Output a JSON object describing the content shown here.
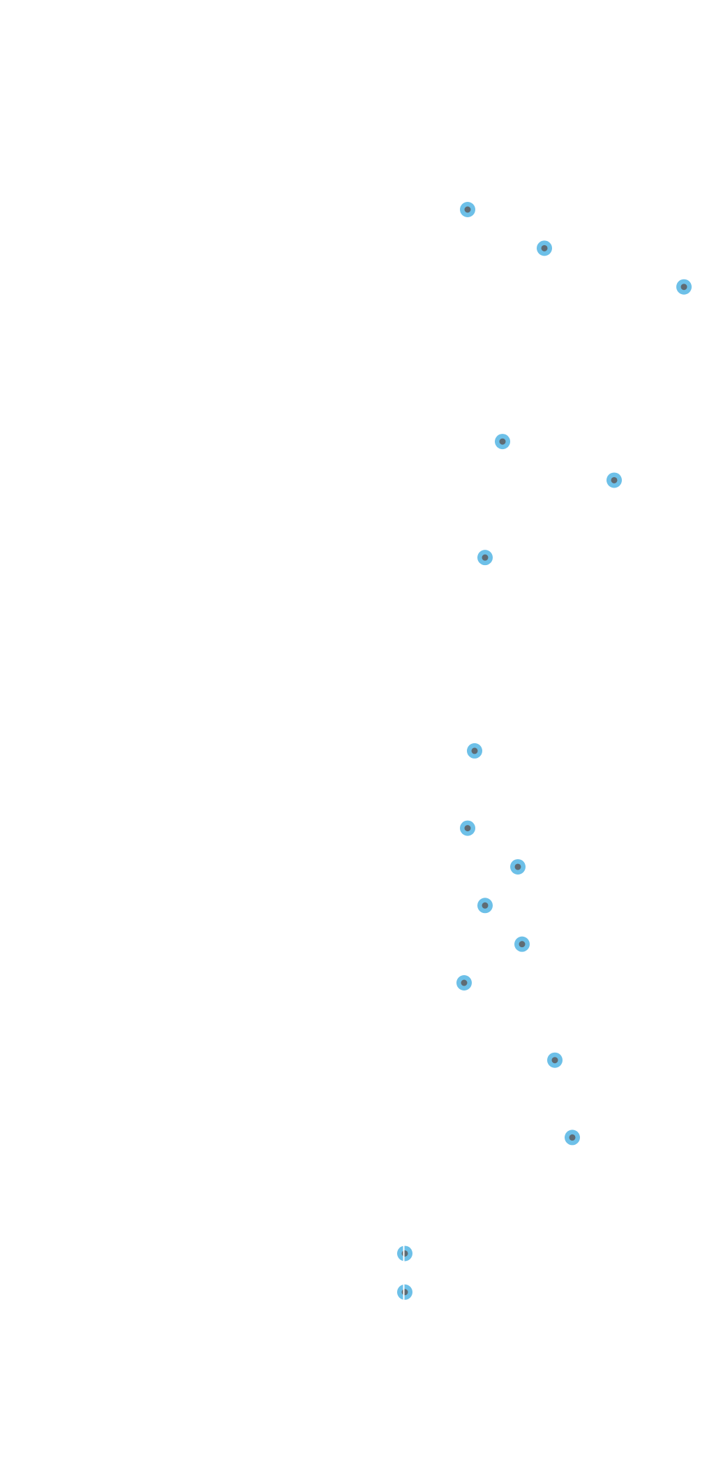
{
  "chart_data": {
    "type": "scatter",
    "title": "",
    "xlabel": "",
    "ylabel": "",
    "grid": false,
    "legend": "none",
    "colors": {
      "point_fill": "#6dc0e8",
      "point_center": "#5f6b73"
    },
    "points": [
      {
        "row": 5,
        "x": 0.67
      },
      {
        "row": 6,
        "x": 0.78
      },
      {
        "row": 7,
        "x": 0.98
      },
      {
        "row": 11,
        "x": 0.72
      },
      {
        "row": 12,
        "x": 0.88
      },
      {
        "row": 14,
        "x": 0.695
      },
      {
        "row": 19,
        "x": 0.68
      },
      {
        "row": 21,
        "x": 0.67
      },
      {
        "row": 22,
        "x": 0.742
      },
      {
        "row": 23,
        "x": 0.695
      },
      {
        "row": 24,
        "x": 0.748
      },
      {
        "row": 25,
        "x": 0.665
      },
      {
        "row": 27,
        "x": 0.795
      },
      {
        "row": 29,
        "x": 0.82
      },
      {
        "row": 32,
        "x": 0.58,
        "style": "split"
      },
      {
        "row": 33,
        "x": 0.58,
        "style": "split"
      }
    ]
  }
}
